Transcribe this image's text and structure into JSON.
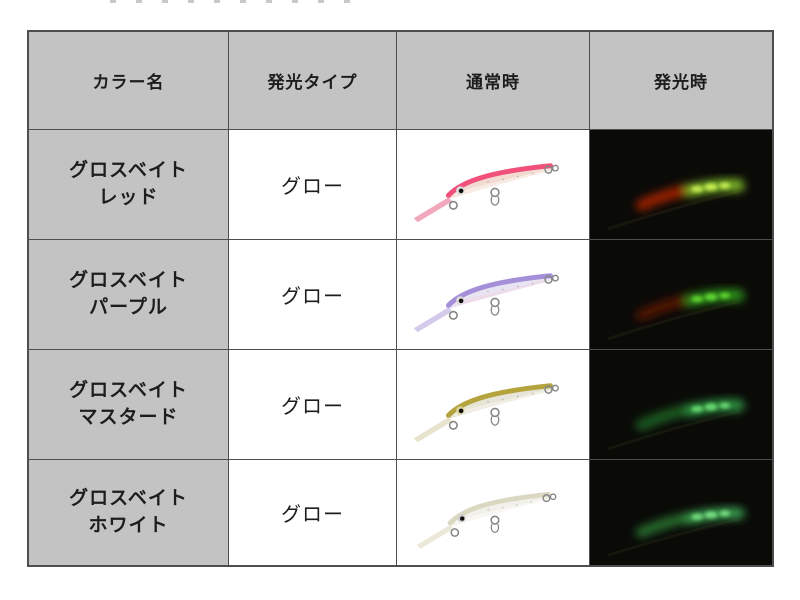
{
  "table": {
    "headers": [
      {
        "label": "カラー名"
      },
      {
        "label": "発光タイプ"
      },
      {
        "label": "通常時"
      },
      {
        "label": "発光時"
      }
    ],
    "rows": [
      {
        "name_line1": "グロスベイト",
        "name_line2": "レッド",
        "glow_type": "グロー",
        "lure": {
          "back": "#f1507b",
          "body": "#f2dcd2",
          "belly": "#faefe9",
          "bill": "#ef9fb2",
          "eye_ring": "#d8d8d8",
          "hardware": "#858585"
        },
        "glow": {
          "front": "#a82300",
          "rear": "#86c62c",
          "spots": "#c9ee55",
          "front_opacity": 0.95,
          "rear_opacity": 0.95
        }
      },
      {
        "name_line1": "グロスベイト",
        "name_line2": "パープル",
        "glow_type": "グロー",
        "lure": {
          "back": "#a48fd8",
          "body": "#e9e4f2",
          "belly": "#eedbea",
          "bill": "#cfc4e9",
          "eye_ring": "#d8d8d8",
          "hardware": "#858585"
        },
        "glow": {
          "front": "#5c1402",
          "rear": "#2f9a1d",
          "spots": "#5fd732",
          "front_opacity": 0.9,
          "rear_opacity": 0.95
        }
      },
      {
        "name_line1": "グロスベイト",
        "name_line2": "マスタード",
        "glow_type": "グロー",
        "lure": {
          "back": "#b5a33e",
          "body": "#e7e4d8",
          "belly": "#f2f0e6",
          "bill": "#e6e0c8",
          "eye_ring": "#d8cf9a",
          "hardware": "#858585"
        },
        "glow": {
          "front": "#1e6322",
          "rear": "#2f9a44",
          "spots": "#6cdb74",
          "front_opacity": 0.95,
          "rear_opacity": 0.95
        }
      },
      {
        "name_line1": "グロスベイト",
        "name_line2": "ホワイト",
        "glow_type": "グロー",
        "lure": {
          "back": "#dbd8c2",
          "body": "#f1f0ea",
          "belly": "#f8f7f3",
          "bill": "#e9e6d6",
          "eye_ring": "#cccccc",
          "hardware": "#858585"
        },
        "glow": {
          "front": "#27722e",
          "rear": "#3da452",
          "spots": "#79e283",
          "front_opacity": 0.95,
          "rear_opacity": 0.95
        }
      }
    ]
  },
  "colors": {
    "header_bg": "#c3c3c3",
    "name_bg": "#c3c3c3",
    "cell_bg": "#ffffff",
    "glow_bg": "#0a0a07",
    "border": "#4e4e50",
    "text": "#1d1d1d",
    "silhouette": "#16160d"
  }
}
